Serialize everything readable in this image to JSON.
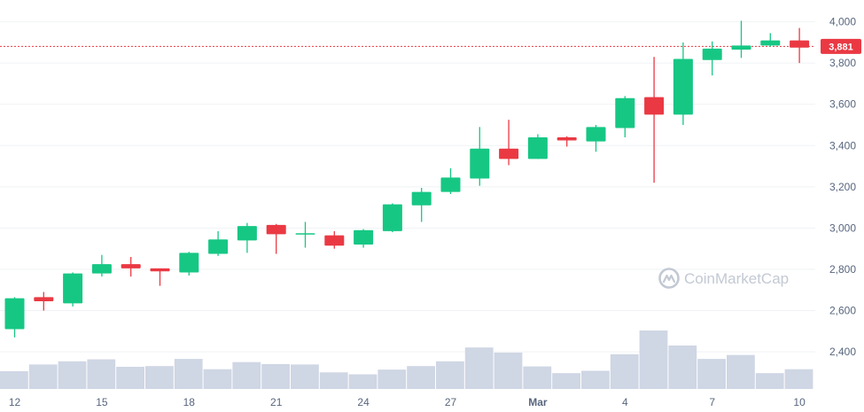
{
  "chart_data": {
    "type": "candlestick",
    "x_tick_labels": [
      {
        "label": "12",
        "index": 0
      },
      {
        "label": "15",
        "index": 3
      },
      {
        "label": "18",
        "index": 6
      },
      {
        "label": "21",
        "index": 9
      },
      {
        "label": "24",
        "index": 12
      },
      {
        "label": "27",
        "index": 15
      },
      {
        "label": "Mar",
        "index": 18,
        "bold": true
      },
      {
        "label": "4",
        "index": 21
      },
      {
        "label": "7",
        "index": 24
      },
      {
        "label": "10",
        "index": 27
      }
    ],
    "y_ticks": [
      2400,
      2600,
      2800,
      3000,
      3200,
      3400,
      3600,
      3800,
      4000
    ],
    "y_tick_labels": [
      "2,400",
      "2,600",
      "2,800",
      "3,000",
      "3,200",
      "3,400",
      "3,600",
      "3,800",
      "4,000"
    ],
    "ylim": [
      2220,
      4080
    ],
    "current_price": 3881,
    "current_price_label": "3,881",
    "candles": [
      {
        "open": 2510,
        "close": 2660,
        "high": 2665,
        "low": 2470
      },
      {
        "open": 2665,
        "close": 2645,
        "high": 2690,
        "low": 2600
      },
      {
        "open": 2635,
        "close": 2780,
        "high": 2785,
        "low": 2620
      },
      {
        "open": 2780,
        "close": 2825,
        "high": 2870,
        "low": 2765
      },
      {
        "open": 2825,
        "close": 2805,
        "high": 2860,
        "low": 2765
      },
      {
        "open": 2805,
        "close": 2790,
        "high": 2800,
        "low": 2720
      },
      {
        "open": 2785,
        "close": 2880,
        "high": 2885,
        "low": 2770
      },
      {
        "open": 2875,
        "close": 2945,
        "high": 2985,
        "low": 2865
      },
      {
        "open": 2940,
        "close": 3010,
        "high": 3025,
        "low": 2880
      },
      {
        "open": 3015,
        "close": 2970,
        "high": 3020,
        "low": 2875
      },
      {
        "open": 2970,
        "close": 2975,
        "high": 3030,
        "low": 2905
      },
      {
        "open": 2965,
        "close": 2915,
        "high": 2985,
        "low": 2900
      },
      {
        "open": 2920,
        "close": 2990,
        "high": 2995,
        "low": 2905
      },
      {
        "open": 2985,
        "close": 3115,
        "high": 3120,
        "low": 2980
      },
      {
        "open": 3110,
        "close": 3175,
        "high": 3195,
        "low": 3030
      },
      {
        "open": 3175,
        "close": 3245,
        "high": 3290,
        "low": 3165
      },
      {
        "open": 3240,
        "close": 3385,
        "high": 3490,
        "low": 3205
      },
      {
        "open": 3385,
        "close": 3335,
        "high": 3525,
        "low": 3305
      },
      {
        "open": 3335,
        "close": 3440,
        "high": 3455,
        "low": 3335
      },
      {
        "open": 3440,
        "close": 3425,
        "high": 3445,
        "low": 3395
      },
      {
        "open": 3420,
        "close": 3490,
        "high": 3500,
        "low": 3370
      },
      {
        "open": 3485,
        "close": 3630,
        "high": 3640,
        "low": 3440
      },
      {
        "open": 3635,
        "close": 3550,
        "high": 3830,
        "low": 3220
      },
      {
        "open": 3550,
        "close": 3820,
        "high": 3900,
        "low": 3500
      },
      {
        "open": 3815,
        "close": 3870,
        "high": 3905,
        "low": 3740
      },
      {
        "open": 3865,
        "close": 3885,
        "high": 4005,
        "low": 3825
      },
      {
        "open": 3885,
        "close": 3910,
        "high": 3945,
        "low": 3880
      },
      {
        "open": 3910,
        "close": 3875,
        "high": 3970,
        "low": 3800
      }
    ],
    "volume_relative": [
      0.45,
      0.62,
      0.7,
      0.75,
      0.56,
      0.58,
      0.76,
      0.5,
      0.68,
      0.63,
      0.62,
      0.42,
      0.37,
      0.49,
      0.58,
      0.7,
      1.05,
      0.92,
      0.57,
      0.4,
      0.46,
      0.88,
      1.48,
      1.1,
      0.76,
      0.86,
      0.4,
      0.5
    ],
    "grid": true,
    "colors": {
      "up": "#16c784",
      "down": "#ea3943",
      "grid": "#eff2f5",
      "volume": "#cfd6e4",
      "price_line": "#ea3943",
      "axis_text": "#58667e",
      "watermark": "#c3c9d3"
    }
  },
  "watermark": {
    "text": "CoinMarketCap",
    "icon": "coinmarketcap-logo-icon"
  }
}
